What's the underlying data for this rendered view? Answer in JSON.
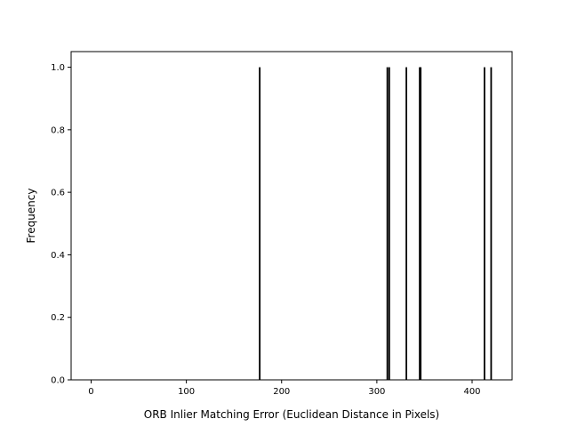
{
  "chart_data": {
    "type": "bar",
    "title": "",
    "xlabel": "ORB Inlier Matching Error (Euclidean Distance in Pixels)",
    "ylabel": "Frequency",
    "xlim": [
      -21,
      442
    ],
    "ylim": [
      0,
      1.05
    ],
    "x_ticks": [
      0,
      100,
      200,
      300,
      400
    ],
    "y_ticks": [
      0.0,
      0.2,
      0.4,
      0.6,
      0.8,
      1.0
    ],
    "bar_width": 1.7,
    "grid": false,
    "series": [
      {
        "x": [
          177,
          311,
          313,
          331,
          345,
          346,
          413,
          420
        ],
        "values": [
          1,
          1,
          1,
          1,
          1,
          1,
          1,
          1
        ]
      }
    ],
    "bar_color": "#000000"
  }
}
